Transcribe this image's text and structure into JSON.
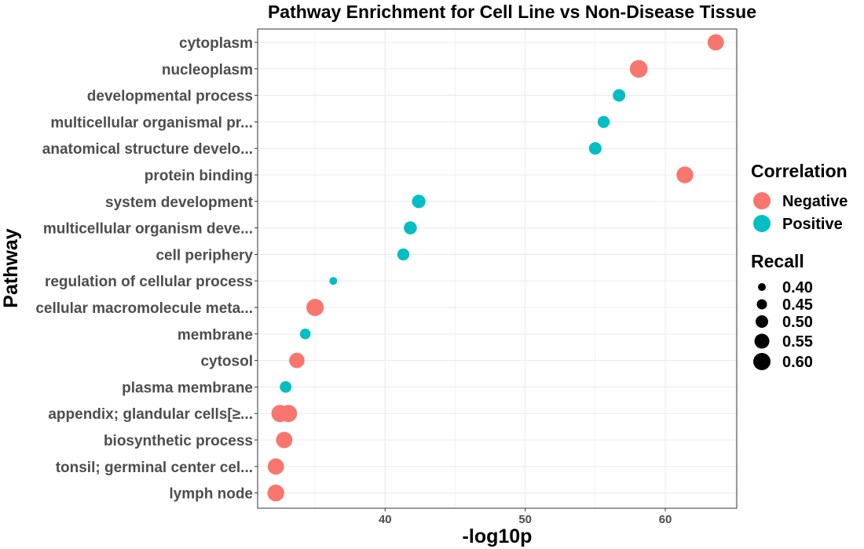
{
  "chart_data": {
    "type": "scatter",
    "title": "Pathway Enrichment for Cell Line vs Non-Disease Tissue",
    "xlabel": "-log10p",
    "ylabel": "Pathway",
    "xlim": [
      30.9,
      65.1
    ],
    "x_ticks": [
      40,
      50,
      60
    ],
    "x_tick_labels": [
      "40",
      "50",
      "60"
    ],
    "grid": true,
    "categories": [
      "cytoplasm",
      "nucleoplasm",
      "developmental process",
      "multicellular organismal pr...",
      "anatomical structure develo...",
      "protein binding",
      "system development",
      "multicellular organism deve...",
      "cell periphery",
      "regulation of cellular process",
      "cellular macromolecule meta...",
      "membrane",
      "cytosol",
      "plasma membrane",
      "appendix; glandular cells[≥...",
      "biosynthetic process",
      "tonsil; germinal center cel...",
      "lymph node"
    ],
    "points": [
      {
        "pathway": "cytoplasm",
        "x": 63.6,
        "correlation": "Negative",
        "recall": 0.58
      },
      {
        "pathway": "nucleoplasm",
        "x": 58.1,
        "correlation": "Negative",
        "recall": 0.61
      },
      {
        "pathway": "developmental process",
        "x": 56.7,
        "correlation": "Positive",
        "recall": 0.5
      },
      {
        "pathway": "multicellular organismal pr...",
        "x": 55.6,
        "correlation": "Positive",
        "recall": 0.49
      },
      {
        "pathway": "anatomical structure develo...",
        "x": 55.0,
        "correlation": "Positive",
        "recall": 0.5
      },
      {
        "pathway": "protein binding",
        "x": 61.4,
        "correlation": "Negative",
        "recall": 0.59
      },
      {
        "pathway": "system development",
        "x": 42.4,
        "correlation": "Positive",
        "recall": 0.52
      },
      {
        "pathway": "multicellular organism deve...",
        "x": 41.8,
        "correlation": "Positive",
        "recall": 0.51
      },
      {
        "pathway": "cell periphery",
        "x": 41.3,
        "correlation": "Positive",
        "recall": 0.49
      },
      {
        "pathway": "regulation of cellular process",
        "x": 36.3,
        "correlation": "Positive",
        "recall": 0.4
      },
      {
        "pathway": "cellular macromolecule meta...",
        "x": 35.0,
        "correlation": "Negative",
        "recall": 0.6
      },
      {
        "pathway": "membrane",
        "x": 34.3,
        "correlation": "Positive",
        "recall": 0.46
      },
      {
        "pathway": "cytosol",
        "x": 33.7,
        "correlation": "Negative",
        "recall": 0.56
      },
      {
        "pathway": "plasma membrane",
        "x": 32.9,
        "correlation": "Positive",
        "recall": 0.48
      },
      {
        "pathway": "appendix; glandular cells[≥...",
        "x": 32.5,
        "correlation": "Negative",
        "recall": 0.6
      },
      {
        "pathway": "appendix; glandular cells[≥...",
        "x": 33.1,
        "correlation": "Negative",
        "recall": 0.6
      },
      {
        "pathway": "biosynthetic process",
        "x": 32.8,
        "correlation": "Negative",
        "recall": 0.58
      },
      {
        "pathway": "tonsil; germinal center cel...",
        "x": 32.2,
        "correlation": "Negative",
        "recall": 0.58
      },
      {
        "pathway": "lymph node",
        "x": 32.2,
        "correlation": "Negative",
        "recall": 0.59
      }
    ],
    "legend": {
      "position": "right",
      "correlation": {
        "title": "Correlation",
        "entries": [
          {
            "label": "Negative",
            "color": "#F8766D"
          },
          {
            "label": "Positive",
            "color": "#00BFC4"
          }
        ]
      },
      "recall": {
        "title": "Recall",
        "entries": [
          {
            "label": "0.40",
            "value": 0.4
          },
          {
            "label": "0.45",
            "value": 0.45
          },
          {
            "label": "0.50",
            "value": 0.5
          },
          {
            "label": "0.55",
            "value": 0.55
          },
          {
            "label": "0.60",
            "value": 0.6
          }
        ]
      }
    },
    "colors": {
      "Negative": "#F8766D",
      "Positive": "#00BFC4",
      "grid": "#EBEBEB",
      "panel_border": "#333333"
    }
  }
}
